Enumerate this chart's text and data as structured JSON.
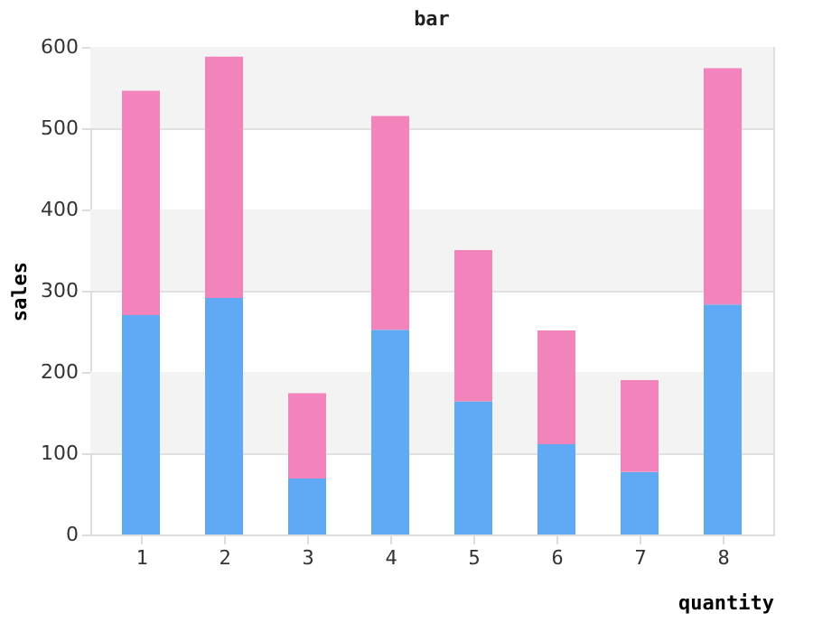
{
  "chart_data": {
    "type": "bar",
    "title": "bar",
    "xlabel": "quantity",
    "ylabel": "sales",
    "categories": [
      "1",
      "2",
      "3",
      "4",
      "5",
      "6",
      "7",
      "8"
    ],
    "stacked": true,
    "series": [
      {
        "color": "#60a9f4",
        "values": [
          270,
          291,
          69,
          252,
          164,
          111,
          77,
          283
        ]
      },
      {
        "color": "#f283bb",
        "values": [
          276,
          297,
          105,
          263,
          186,
          140,
          113,
          291
        ]
      }
    ],
    "ylim": [
      0,
      600
    ],
    "yticks": [
      0,
      100,
      200,
      300,
      400,
      500,
      600
    ],
    "grid": "y",
    "bands": [
      {
        "axis": "y",
        "from": 100,
        "to": 200,
        "color": "#f3f3f3"
      },
      {
        "axis": "y",
        "from": 300,
        "to": 400,
        "color": "#f3f3f3"
      },
      {
        "axis": "y",
        "from": 500,
        "to": 600,
        "color": "#f3f3f3"
      }
    ]
  }
}
